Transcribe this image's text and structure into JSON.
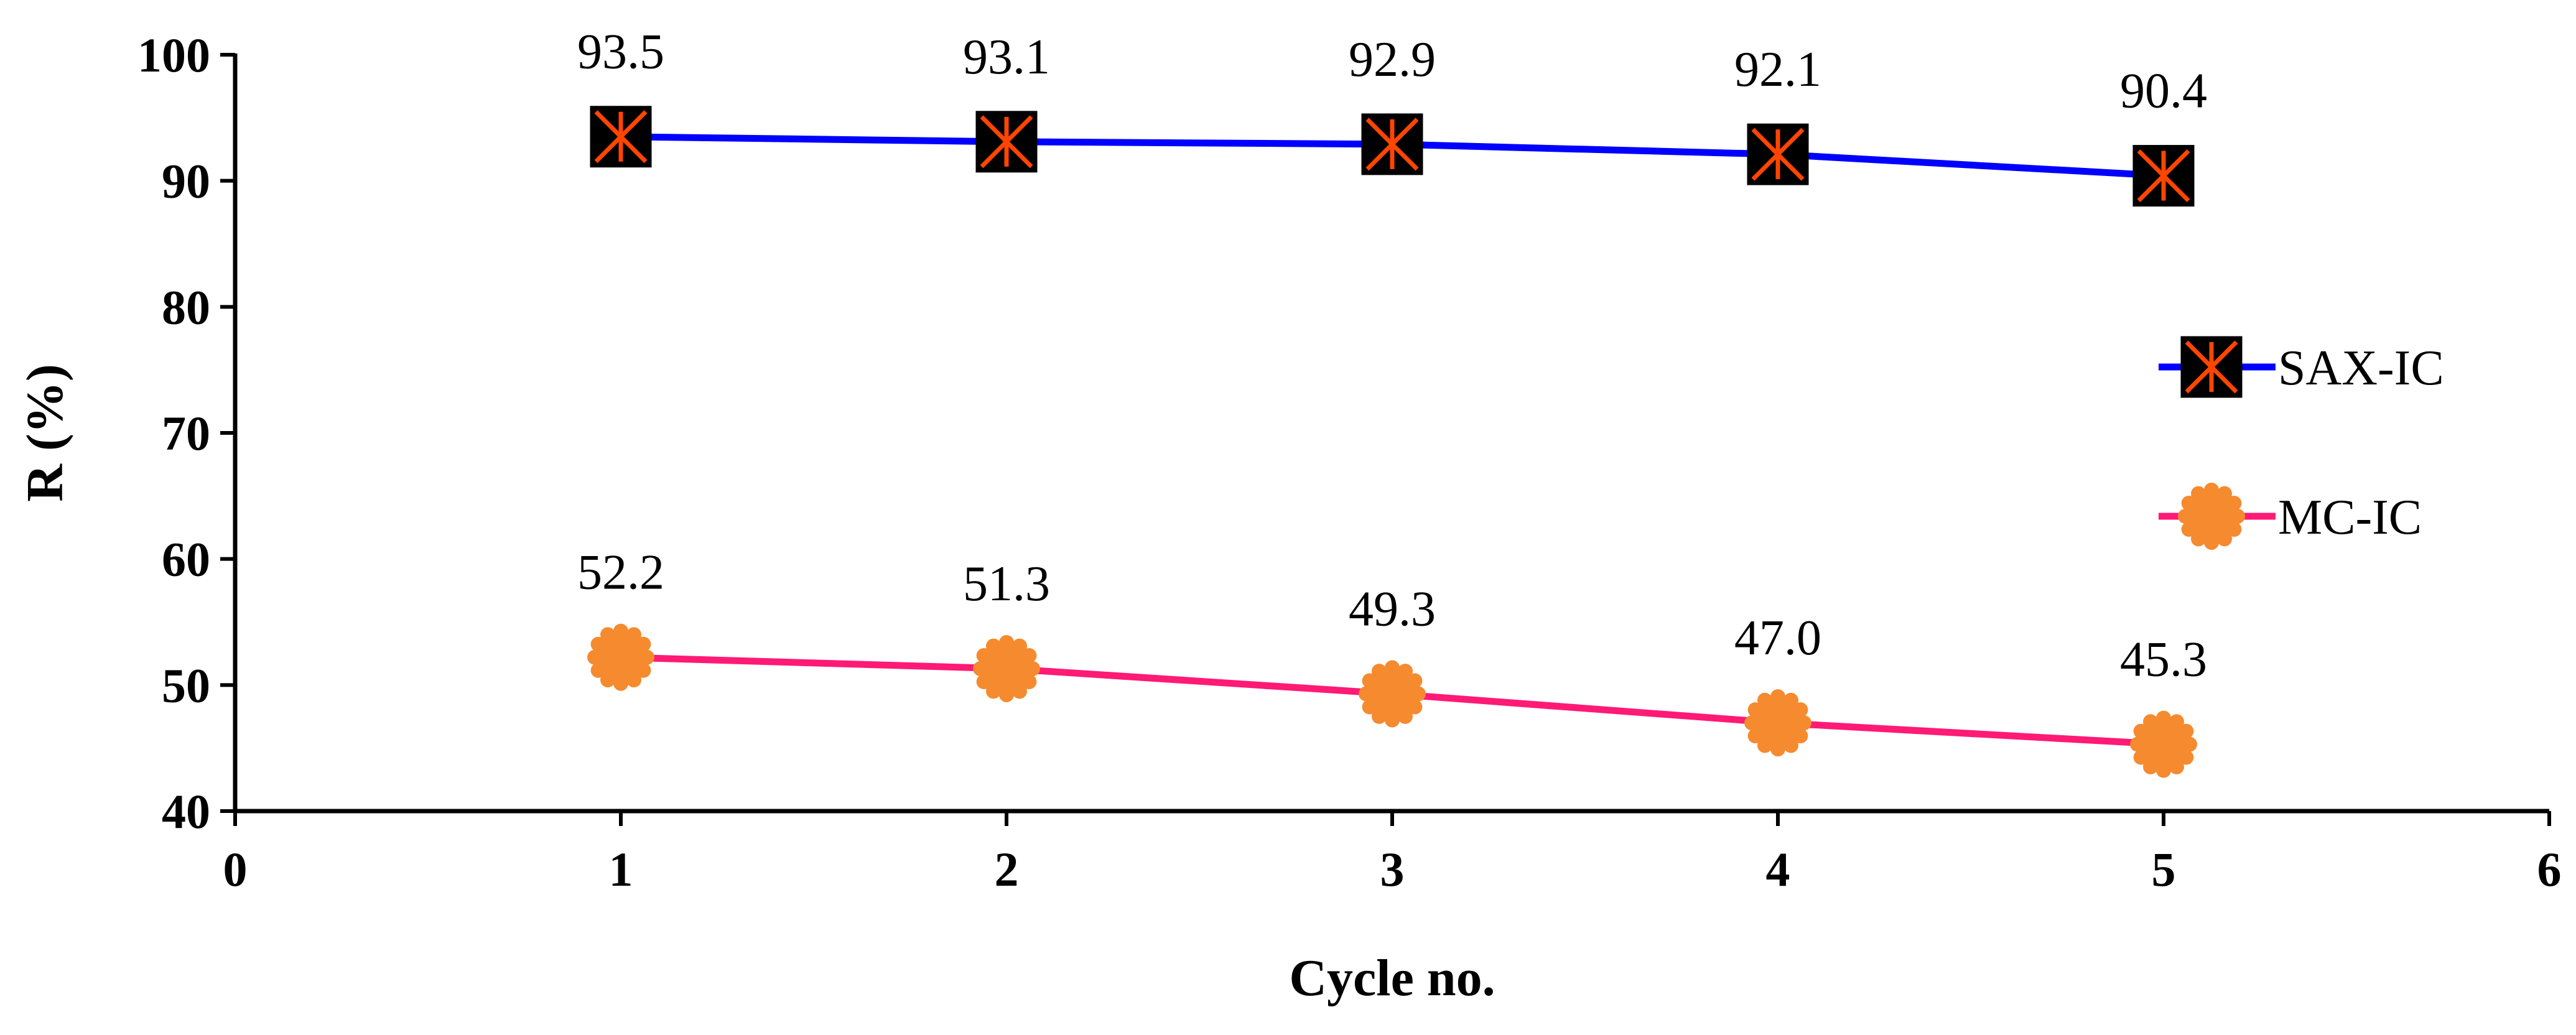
{
  "chart_data": {
    "type": "line",
    "title": "",
    "xlabel": "Cycle no.",
    "ylabel": "R (%)",
    "xlim": [
      0,
      6
    ],
    "ylim": [
      40,
      100
    ],
    "xticks": [
      "0",
      "1",
      "2",
      "3",
      "4",
      "5",
      "6"
    ],
    "yticks": [
      "40",
      "50",
      "60",
      "70",
      "80",
      "90",
      "100"
    ],
    "grid": false,
    "legend_position": "right",
    "x": [
      1,
      2,
      3,
      4,
      5
    ],
    "series": [
      {
        "name": "SAX-IC",
        "values": [
          93.5,
          93.1,
          92.9,
          92.1,
          90.4
        ],
        "labels": [
          "93.5",
          "93.1",
          "92.9",
          "92.1",
          "90.4"
        ],
        "line_color": "#0000ff",
        "marker": "square-asterisk",
        "marker_fill": "#000000",
        "marker_accent": "#ff4500"
      },
      {
        "name": "MC-IC",
        "values": [
          52.2,
          51.3,
          49.3,
          47.0,
          45.3
        ],
        "labels": [
          "52.2",
          "51.3",
          "49.3",
          "47.0",
          "45.3"
        ],
        "line_color": "#ff1a75",
        "marker": "circle",
        "marker_fill": "#f58a2f",
        "marker_accent": "#f58a2f"
      }
    ]
  }
}
